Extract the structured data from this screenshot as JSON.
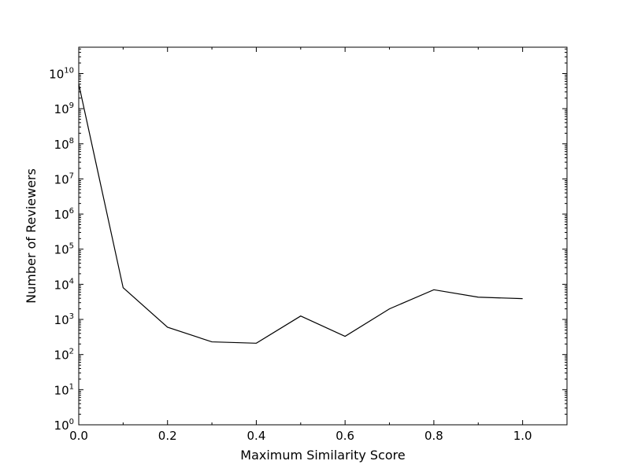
{
  "chart_data": {
    "type": "line",
    "title": "",
    "xlabel": "Maximum Similarity Score",
    "ylabel": "Number of Reviewers",
    "xlim": [
      0.0,
      1.1
    ],
    "ylim_log10": [
      0,
      10.75
    ],
    "yscale": "log",
    "grid": false,
    "legend": "none",
    "x_ticks": [
      {
        "value": 0.0,
        "label": "0.0"
      },
      {
        "value": 0.2,
        "label": "0.2"
      },
      {
        "value": 0.4,
        "label": "0.4"
      },
      {
        "value": 0.6,
        "label": "0.6"
      },
      {
        "value": 0.8,
        "label": "0.8"
      },
      {
        "value": 1.0,
        "label": "1.0"
      }
    ],
    "y_ticks": [
      {
        "exp": 0,
        "base": "10",
        "power": "0"
      },
      {
        "exp": 1,
        "base": "10",
        "power": "1"
      },
      {
        "exp": 2,
        "base": "10",
        "power": "2"
      },
      {
        "exp": 3,
        "base": "10",
        "power": "3"
      },
      {
        "exp": 4,
        "base": "10",
        "power": "4"
      },
      {
        "exp": 5,
        "base": "10",
        "power": "5"
      },
      {
        "exp": 6,
        "base": "10",
        "power": "6"
      },
      {
        "exp": 7,
        "base": "10",
        "power": "7"
      },
      {
        "exp": 8,
        "base": "10",
        "power": "8"
      },
      {
        "exp": 9,
        "base": "10",
        "power": "9"
      },
      {
        "exp": 10,
        "base": "10",
        "power": "10"
      }
    ],
    "series": [
      {
        "color": "#000000",
        "x": [
          0.0,
          0.1,
          0.2,
          0.3,
          0.4,
          0.5,
          0.6,
          0.7,
          0.8,
          0.9,
          1.0
        ],
        "y": [
          5000000000,
          8000,
          600,
          230,
          210,
          1250,
          330,
          2000,
          7000,
          4300,
          3900
        ]
      }
    ]
  }
}
